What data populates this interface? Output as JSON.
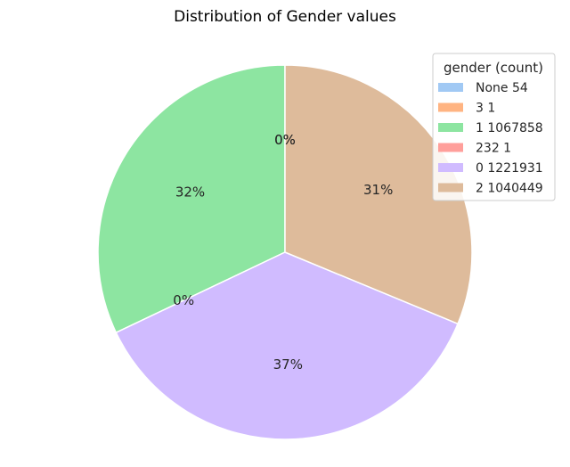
{
  "chart_data": {
    "type": "pie",
    "title": "Distribution of Gender values",
    "legend_title": "gender (count)",
    "legend_position": "top-right",
    "slices": [
      {
        "label": "None 54",
        "value": 54,
        "color": "#a1c9f4",
        "pct_label": "0%"
      },
      {
        "label": "3 1",
        "value": 1,
        "color": "#ffb482",
        "pct_label": "0%"
      },
      {
        "label": "1 1067858",
        "value": 1067858,
        "color": "#8de5a1",
        "pct_label": "32%"
      },
      {
        "label": "232 1",
        "value": 1,
        "color": "#ff9f9b",
        "pct_label": "0%"
      },
      {
        "label": "0 1221931",
        "value": 1221931,
        "color": "#d0bbff",
        "pct_label": "37%"
      },
      {
        "label": "2 1040449",
        "value": 1040449,
        "color": "#debb9b",
        "pct_label": "31%"
      }
    ]
  }
}
